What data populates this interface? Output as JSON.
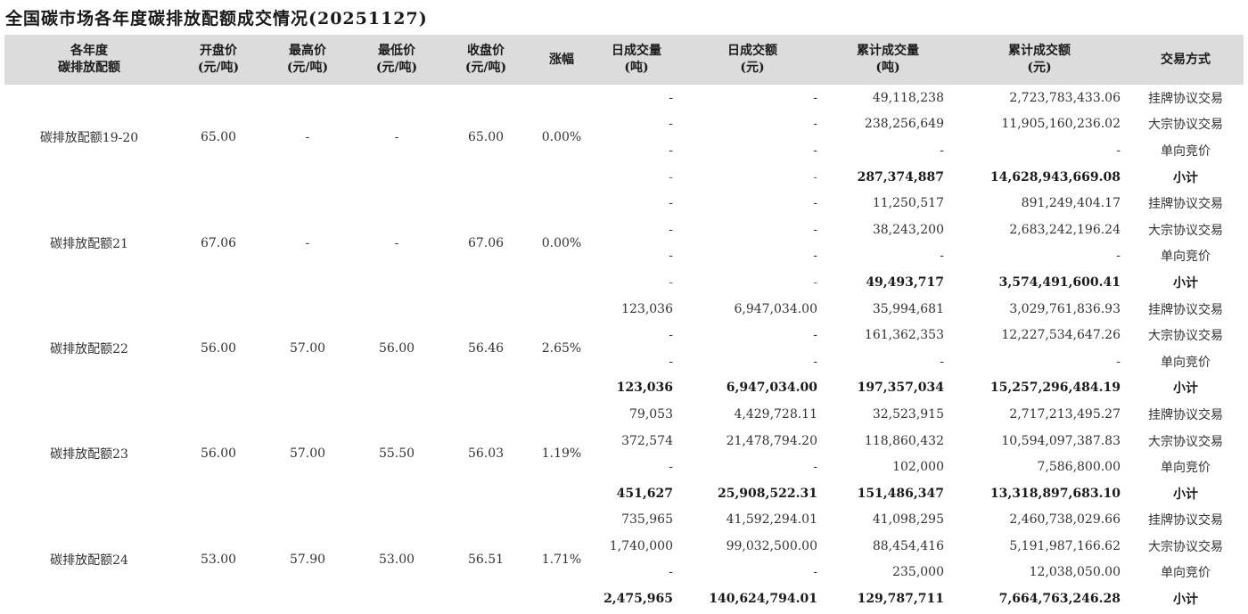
{
  "title": "全国碳市场各年度碳排放配额成交情况(20251127)",
  "headers": [
    [
      "各年度",
      "碳排放配额"
    ],
    [
      "开盘价",
      "(元/吨)"
    ],
    [
      "最高价",
      "(元/吨)"
    ],
    [
      "最低价",
      "(元/吨)"
    ],
    [
      "收盘价",
      "(元/吨)"
    ],
    [
      "涨幅"
    ],
    [
      "日成交量",
      "(吨)"
    ],
    [
      "日成交额",
      "(元)"
    ],
    [
      "累计成交量",
      "(吨)"
    ],
    [
      "累计成交额",
      "(元)"
    ],
    [
      "交易方式"
    ]
  ],
  "groups": [
    {
      "name": "碳排放配额19-20",
      "open": "65.00",
      "high": "-",
      "low": "-",
      "close": "65.00",
      "change": "0.00%",
      "rows": [
        {
          "daily_volume": "-",
          "daily_amount": "-",
          "cum_volume": "49,118,238",
          "cum_amount": "2,723,783,433.06",
          "mode": "挂牌协议交易"
        },
        {
          "daily_volume": "-",
          "daily_amount": "-",
          "cum_volume": "238,256,649",
          "cum_amount": "11,905,160,236.02",
          "mode": "大宗协议交易"
        },
        {
          "daily_volume": "-",
          "daily_amount": "-",
          "cum_volume": "-",
          "cum_amount": "-",
          "mode": "单向竞价"
        },
        {
          "daily_volume": "-",
          "daily_amount": "-",
          "cum_volume": "287,374,887",
          "cum_amount": "14,628,943,669.08",
          "mode": "小计"
        }
      ]
    },
    {
      "name": "碳排放配额21",
      "open": "67.06",
      "high": "-",
      "low": "-",
      "close": "67.06",
      "change": "0.00%",
      "rows": [
        {
          "daily_volume": "-",
          "daily_amount": "-",
          "cum_volume": "11,250,517",
          "cum_amount": "891,249,404.17",
          "mode": "挂牌协议交易"
        },
        {
          "daily_volume": "-",
          "daily_amount": "-",
          "cum_volume": "38,243,200",
          "cum_amount": "2,683,242,196.24",
          "mode": "大宗协议交易"
        },
        {
          "daily_volume": "-",
          "daily_amount": "-",
          "cum_volume": "-",
          "cum_amount": "-",
          "mode": "单向竞价"
        },
        {
          "daily_volume": "-",
          "daily_amount": "-",
          "cum_volume": "49,493,717",
          "cum_amount": "3,574,491,600.41",
          "mode": "小计"
        }
      ]
    },
    {
      "name": "碳排放配额22",
      "open": "56.00",
      "high": "57.00",
      "low": "56.00",
      "close": "56.46",
      "change": "2.65%",
      "rows": [
        {
          "daily_volume": "123,036",
          "daily_amount": "6,947,034.00",
          "cum_volume": "35,994,681",
          "cum_amount": "3,029,761,836.93",
          "mode": "挂牌协议交易"
        },
        {
          "daily_volume": "-",
          "daily_amount": "-",
          "cum_volume": "161,362,353",
          "cum_amount": "12,227,534,647.26",
          "mode": "大宗协议交易"
        },
        {
          "daily_volume": "-",
          "daily_amount": "-",
          "cum_volume": "-",
          "cum_amount": "-",
          "mode": "单向竞价"
        },
        {
          "daily_volume": "123,036",
          "daily_amount": "6,947,034.00",
          "cum_volume": "197,357,034",
          "cum_amount": "15,257,296,484.19",
          "mode": "小计"
        }
      ]
    },
    {
      "name": "碳排放配额23",
      "open": "56.00",
      "high": "57.00",
      "low": "55.50",
      "close": "56.03",
      "change": "1.19%",
      "rows": [
        {
          "daily_volume": "79,053",
          "daily_amount": "4,429,728.11",
          "cum_volume": "32,523,915",
          "cum_amount": "2,717,213,495.27",
          "mode": "挂牌协议交易"
        },
        {
          "daily_volume": "372,574",
          "daily_amount": "21,478,794.20",
          "cum_volume": "118,860,432",
          "cum_amount": "10,594,097,387.83",
          "mode": "大宗协议交易"
        },
        {
          "daily_volume": "-",
          "daily_amount": "-",
          "cum_volume": "102,000",
          "cum_amount": "7,586,800.00",
          "mode": "单向竞价"
        },
        {
          "daily_volume": "451,627",
          "daily_amount": "25,908,522.31",
          "cum_volume": "151,486,347",
          "cum_amount": "13,318,897,683.10",
          "mode": "小计"
        }
      ]
    },
    {
      "name": "碳排放配额24",
      "open": "53.00",
      "high": "57.90",
      "low": "53.00",
      "close": "56.51",
      "change": "1.71%",
      "rows": [
        {
          "daily_volume": "735,965",
          "daily_amount": "41,592,294.01",
          "cum_volume": "41,098,295",
          "cum_amount": "2,460,738,029.66",
          "mode": "挂牌协议交易"
        },
        {
          "daily_volume": "1,740,000",
          "daily_amount": "99,032,500.00",
          "cum_volume": "88,454,416",
          "cum_amount": "5,191,987,166.62",
          "mode": "大宗协议交易"
        },
        {
          "daily_volume": "-",
          "daily_amount": "-",
          "cum_volume": "235,000",
          "cum_amount": "12,038,050.00",
          "mode": "单向竞价"
        },
        {
          "daily_volume": "2,475,965",
          "daily_amount": "140,624,794.01",
          "cum_volume": "129,787,711",
          "cum_amount": "7,664,763,246.28",
          "mode": "小计"
        }
      ]
    }
  ]
}
